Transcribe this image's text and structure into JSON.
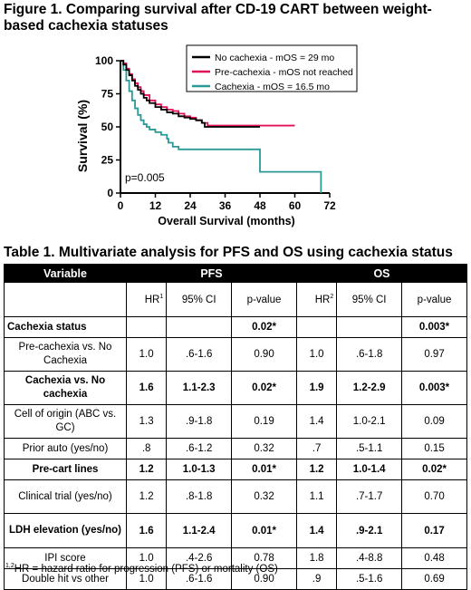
{
  "figure_title": "Figure 1. Comparing survival after CD-19 CART between weight-based cachexia statuses",
  "table_title": "Table 1. Multivariate analysis for PFS and OS using cachexia status",
  "chart_data": {
    "type": "line",
    "title": "",
    "xlabel": "Overall Survival (months)",
    "ylabel": "Survival (%)",
    "xlim": [
      0,
      72
    ],
    "ylim": [
      0,
      100
    ],
    "x_ticks": [
      "0",
      "12",
      "24",
      "36",
      "48",
      "60",
      "72"
    ],
    "y_ticks": [
      "0",
      "25",
      "50",
      "75",
      "100"
    ],
    "annotation": "p=0.005",
    "legend_position": "top-right",
    "series": [
      {
        "name": "No cachexia  - mOS = 29 mo",
        "color": "#000000",
        "x": [
          0,
          1,
          2,
          3,
          4,
          5,
          6,
          7,
          8,
          9,
          10,
          12,
          14,
          16,
          18,
          20,
          22,
          24,
          26,
          28,
          29,
          30,
          36,
          42,
          48
        ],
        "y": [
          100,
          97,
          93,
          89,
          85,
          81,
          78,
          75,
          72,
          70,
          68,
          65,
          63,
          61,
          60,
          58,
          57,
          56,
          55,
          53,
          50,
          50,
          50,
          50,
          50
        ]
      },
      {
        "name": "Pre-cachexia  - mOS not reached",
        "color": "#e0105a",
        "x": [
          0,
          1,
          2,
          3,
          4,
          5,
          6,
          7,
          8,
          10,
          12,
          14,
          16,
          18,
          20,
          22,
          24,
          26,
          28,
          30,
          36,
          42,
          48,
          54,
          60
        ],
        "y": [
          100,
          98,
          94,
          90,
          86,
          83,
          80,
          77,
          74,
          70,
          67,
          65,
          63,
          62,
          60,
          58,
          57,
          55,
          53,
          51,
          51,
          51,
          51,
          51,
          51
        ]
      },
      {
        "name": "Cachexia  - mOS = 16.5 mo",
        "color": "#2a9a96",
        "x": [
          0,
          1,
          2,
          3,
          4,
          5,
          6,
          7,
          8,
          9,
          10,
          12,
          14,
          16,
          16.5,
          18,
          20,
          22,
          24,
          26,
          36,
          42,
          48,
          60,
          66,
          69
        ],
        "y": [
          100,
          93,
          85,
          77,
          70,
          64,
          59,
          55,
          52,
          50,
          48,
          46,
          44,
          41,
          38,
          35,
          33,
          33,
          33,
          33,
          33,
          33,
          16,
          16,
          16,
          0
        ]
      }
    ]
  },
  "table": {
    "headers": {
      "variable": "Variable",
      "pfs": "PFS",
      "os": "OS"
    },
    "subheaders": {
      "hr": "HR",
      "hr_sup1": "1",
      "hr_sup2": "2",
      "ci": "95% CI",
      "p": "p-value"
    },
    "rows": [
      {
        "label": "Cachexia status",
        "bold": true,
        "pfs_hr": "",
        "pfs_ci": "",
        "pfs_p": "0.02*",
        "os_hr": "",
        "os_ci": "",
        "os_p": "0.003*"
      },
      {
        "label": "Pre-cachexia vs. No Cachexia",
        "bold": false,
        "pfs_hr": "1.0",
        "pfs_ci": ".6-1.6",
        "pfs_p": "0.90",
        "os_hr": "1.0",
        "os_ci": ".6-1.8",
        "os_p": "0.97"
      },
      {
        "label": "Cachexia vs. No cachexia",
        "bold": true,
        "pfs_hr": "1.6",
        "pfs_ci": "1.1-2.3",
        "pfs_p": "0.02*",
        "os_hr": "1.9",
        "os_ci": "1.2-2.9",
        "os_p": "0.003*"
      },
      {
        "label": "Cell of origin (ABC vs. GC)",
        "bold": false,
        "pfs_hr": "1.3",
        "pfs_ci": ".9-1.8",
        "pfs_p": "0.19",
        "os_hr": "1.4",
        "os_ci": "1.0-2.1",
        "os_p": "0.09"
      },
      {
        "label": "Prior auto (yes/no)",
        "bold": false,
        "pfs_hr": ".8",
        "pfs_ci": ".6-1.2",
        "pfs_p": "0.32",
        "os_hr": ".7",
        "os_ci": ".5-1.1",
        "os_p": "0.15"
      },
      {
        "label": "Pre-cart lines",
        "bold": true,
        "pfs_hr": "1.2",
        "pfs_ci": "1.0-1.3",
        "pfs_p": "0.01*",
        "os_hr": "1.2",
        "os_ci": "1.0-1.4",
        "os_p": "0.02*"
      },
      {
        "label": "Clinical trial (yes/no)",
        "bold": false,
        "pfs_hr": "1.2",
        "pfs_ci": ".8-1.8",
        "pfs_p": "0.32",
        "os_hr": "1.1",
        "os_ci": ".7-1.7",
        "os_p": "0.70"
      },
      {
        "label": "LDH elevation (yes/no)",
        "bold": true,
        "pfs_hr": "1.6",
        "pfs_ci": "1.1-2.4",
        "pfs_p": "0.01*",
        "os_hr": "1.4",
        "os_ci": ".9-2.1",
        "os_p": "0.17"
      },
      {
        "label": "IPI score",
        "bold": false,
        "pfs_hr": "1.0",
        "pfs_ci": ".4-2.6",
        "pfs_p": "0.78",
        "os_hr": "1.8",
        "os_ci": ".4-8.8",
        "os_p": "0.48"
      },
      {
        "label": "Double hit vs other",
        "bold": false,
        "pfs_hr": "1.0",
        "pfs_ci": ".6-1.6",
        "pfs_p": "0.90",
        "os_hr": ".9",
        "os_ci": ".5-1.6",
        "os_p": "0.69"
      }
    ]
  },
  "footnote": {
    "sup": "1,2",
    "text": "HR = hazard ratio for progression (PFS) or mortality (OS)"
  }
}
